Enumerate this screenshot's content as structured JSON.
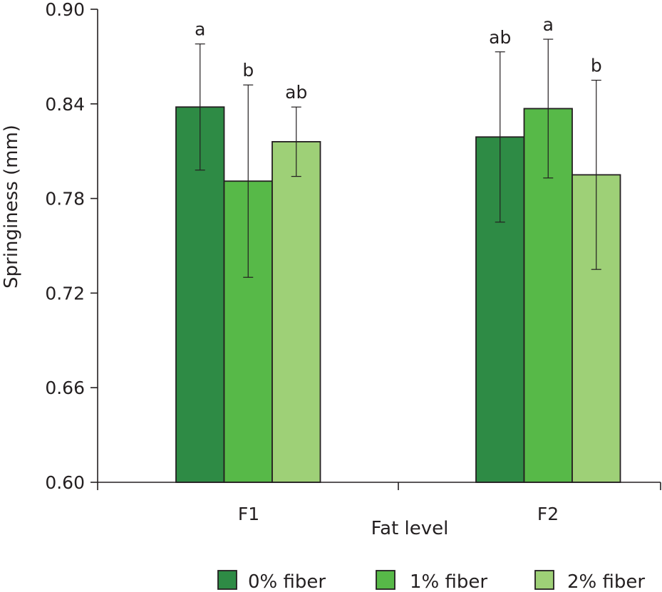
{
  "chart_data": {
    "type": "bar",
    "xlabel": "Fat level",
    "ylabel": "Springiness (mm)",
    "categories": [
      "F1",
      "F2"
    ],
    "ylim": [
      0.6,
      0.9
    ],
    "yticks": [
      "0.90",
      "0.84",
      "0.78",
      "0.72",
      "0.66",
      "0.60"
    ],
    "ytick_values": [
      0.9,
      0.84,
      0.78,
      0.72,
      0.66,
      0.6
    ],
    "grid": false,
    "legend_position": "bottom",
    "series": [
      {
        "name": "0% fiber",
        "color": "#2e8b45",
        "values": [
          0.838,
          0.819
        ],
        "errors": [
          0.04,
          0.054
        ],
        "letters": [
          "a",
          "ab"
        ]
      },
      {
        "name": "1% fiber",
        "color": "#57b948",
        "values": [
          0.791,
          0.837
        ],
        "errors": [
          0.061,
          0.044
        ],
        "letters": [
          "b",
          "a"
        ]
      },
      {
        "name": "2% fiber",
        "color": "#9ed077",
        "values": [
          0.816,
          0.795
        ],
        "errors": [
          0.022,
          0.06
        ],
        "letters": [
          "ab",
          "b"
        ]
      }
    ]
  }
}
